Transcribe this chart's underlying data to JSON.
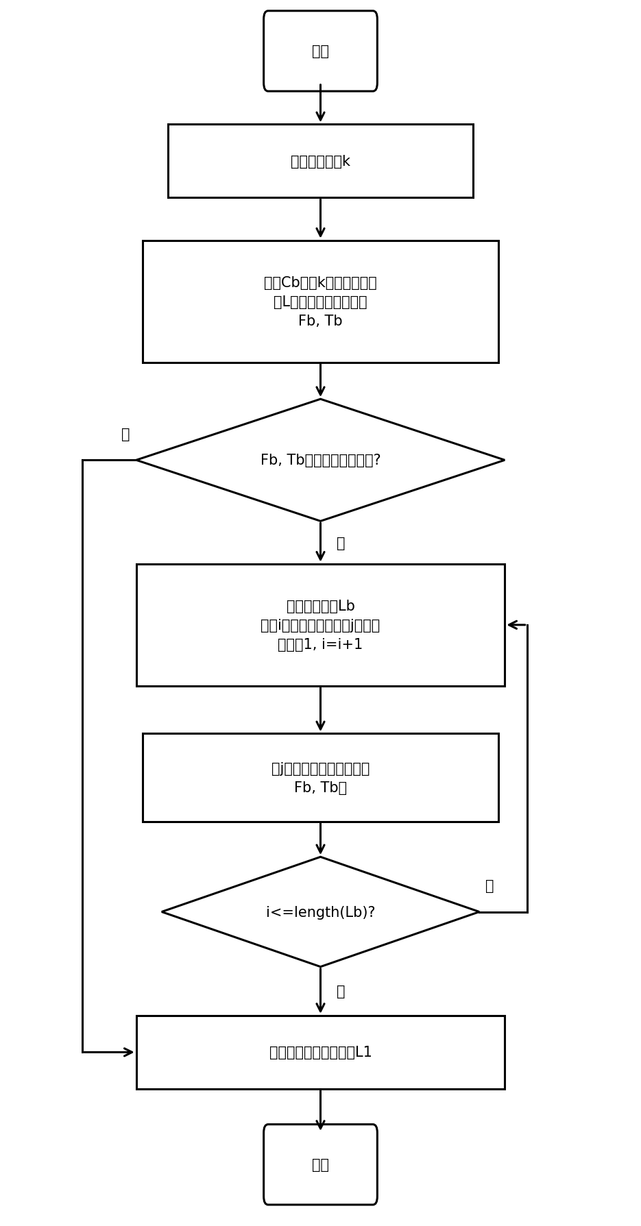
{
  "fig_width": 9.35,
  "fig_height": 17.9,
  "bg_color": "#ffffff",
  "line_color": "#000000",
  "line_width": 2.2,
  "font_size": 15,
  "nodes": {
    "start": {
      "label": "开始",
      "type": "terminal"
    },
    "input": {
      "label": "输入抗体个体k",
      "type": "rect"
    },
    "matrix": {
      "label": "矩阵Cb记录k的投运支路编\n号L及每条支路的首末节\nFb, Tb",
      "type": "rect"
    },
    "diamond1": {
      "label": "Fb, Tb是否包含所有节点?",
      "type": "diamond"
    },
    "process1": {
      "label": "孤立节点集合Lb\n中第i个节点连接的支路j的状态\n更改为1, i=i+1",
      "type": "rect"
    },
    "process2": {
      "label": "将j连接的首末节点添加进\nFb, Tb中",
      "type": "rect"
    },
    "diamond2": {
      "label": "i<=length(Lb)?",
      "type": "diamond"
    },
    "output": {
      "label": "输出无孤立节点的路径L1",
      "type": "rect"
    },
    "end": {
      "label": "结束",
      "type": "terminal"
    }
  },
  "yes_label": "是",
  "no_label": "否"
}
